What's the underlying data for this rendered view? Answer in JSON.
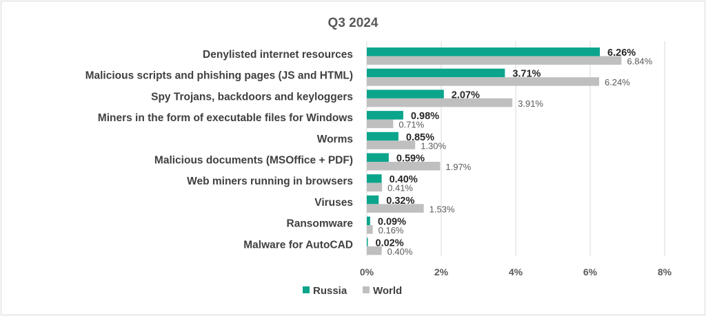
{
  "chart_data": {
    "type": "bar",
    "orientation": "horizontal",
    "title": "Q3 2024",
    "categories": [
      "Denylisted internet resources",
      "Malicious scripts and phishing pages (JS and HTML)",
      "Spy Trojans, backdoors and keyloggers",
      "Miners in the form of executable files for Windows",
      "Worms",
      "Malicious documents (MSOffice + PDF)",
      "Web miners running in browsers",
      "Viruses",
      "Ransomware",
      "Malware for AutoCAD"
    ],
    "series": [
      {
        "name": "Russia",
        "color": "#0ba58c",
        "values": [
          6.26,
          3.71,
          2.07,
          0.98,
          0.85,
          0.59,
          0.4,
          0.32,
          0.09,
          0.02
        ],
        "labels": [
          "6.26%",
          "3.71%",
          "2.07%",
          "0.98%",
          "0.85%",
          "0.59%",
          "0.40%",
          "0.32%",
          "0.09%",
          "0.02%"
        ]
      },
      {
        "name": "World",
        "color": "#bfbfbf",
        "values": [
          6.84,
          6.24,
          3.91,
          0.71,
          1.3,
          1.97,
          0.41,
          1.53,
          0.16,
          0.4
        ],
        "labels": [
          "6.84%",
          "6.24%",
          "3.91%",
          "0.71%",
          "1.30%",
          "1.97%",
          "0.41%",
          "1.53%",
          "0.16%",
          "0.40%"
        ]
      }
    ],
    "xlim": [
      0,
      8
    ],
    "xticks": [
      "0%",
      "2%",
      "4%",
      "6%",
      "8%"
    ],
    "grid": true,
    "legend": "bottom"
  }
}
